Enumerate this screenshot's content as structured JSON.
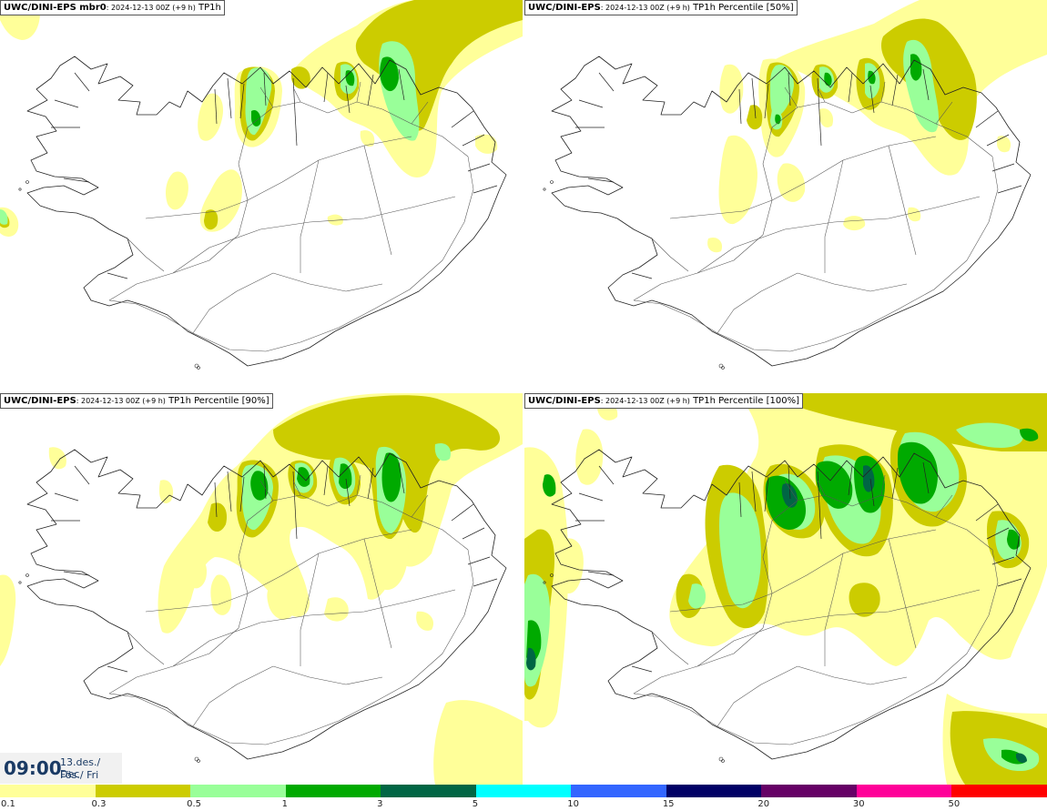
{
  "panels": [
    {
      "model": "UWC/DINI-EPS mbr0",
      "subtitle": ": 2024-12-13 00Z (+9 h)",
      "field": "TP1h",
      "level": 0
    },
    {
      "model": "UWC/DINI-EPS",
      "subtitle": ": 2024-12-13 00Z (+9 h)",
      "field": "TP1h Percentile [50%]",
      "level": 0
    },
    {
      "model": "UWC/DINI-EPS",
      "subtitle": ": 2024-12-13 00Z (+9 h)",
      "field": "TP1h Percentile [90%]",
      "level": 1
    },
    {
      "model": "UWC/DINI-EPS",
      "subtitle": ": 2024-12-13 00Z (+9 h)",
      "field": "TP1h Percentile [100%]",
      "level": 2
    }
  ],
  "timestamp": {
    "time": "09:00",
    "date": "13.des./ Dec",
    "day": "Fös./ Fri"
  },
  "legend": [
    {
      "label": "0.1",
      "color": "#ffff99"
    },
    {
      "label": "0.3",
      "color": "#cccc00"
    },
    {
      "label": "0.5",
      "color": "#99ff99"
    },
    {
      "label": "1",
      "color": "#00aa00"
    },
    {
      "label": "3",
      "color": "#006644"
    },
    {
      "label": "5",
      "color": "#00ffff"
    },
    {
      "label": "10",
      "color": "#3366ff"
    },
    {
      "label": "15",
      "color": "#000066"
    },
    {
      "label": "20",
      "color": "#660066"
    },
    {
      "label": "30",
      "color": "#ff0099"
    },
    {
      "label": "50",
      "color": "#ff0000"
    }
  ]
}
